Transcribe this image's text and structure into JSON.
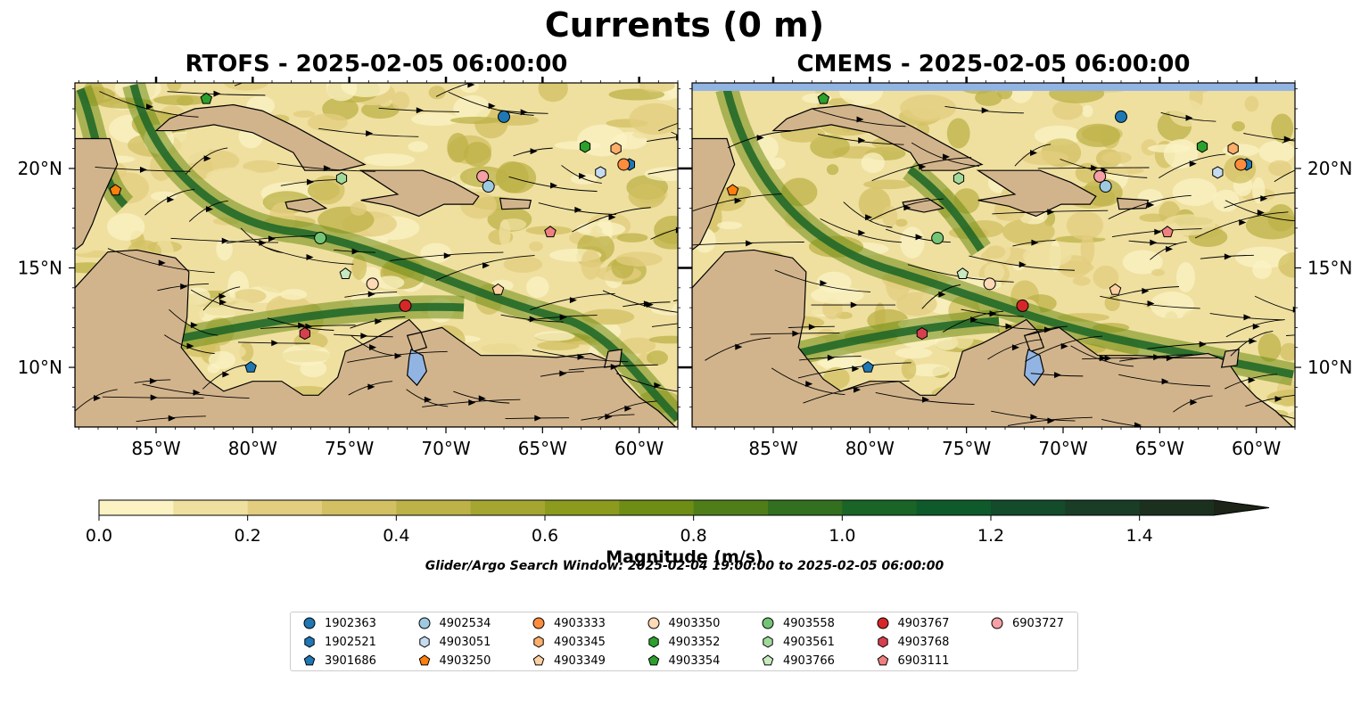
{
  "figure": {
    "title": "Currents (0 m)",
    "panels": [
      {
        "title": "RTOFS - 2025-02-05 06:00:00"
      },
      {
        "title": "CMEMS - 2025-02-05 06:00:00"
      }
    ],
    "colorbar": {
      "label": "Magnitude (m/s)",
      "ticks": [
        "0.0",
        "0.2",
        "0.4",
        "0.6",
        "0.8",
        "1.0",
        "1.2",
        "1.4"
      ],
      "colors": [
        "#fbf3c4",
        "#efe0a0",
        "#e3cd7f",
        "#d2c062",
        "#bcb247",
        "#a5a631",
        "#8c9b1d",
        "#6e8d14",
        "#4f7e19",
        "#32701f",
        "#1a6427",
        "#0f5a2a",
        "#134b2b",
        "#1a3d27",
        "#1c3020",
        "#1b2417"
      ],
      "extend": "max"
    },
    "search_window": "Glider/Argo Search Window: 2025-02-04 19:00:00 to 2025-02-05 06:00:00",
    "legend_title": ""
  },
  "chart_data": {
    "type": "map",
    "variable": "surface current magnitude (m/s) with streamlines",
    "lon_range": [
      -89.2,
      -58.0
    ],
    "lat_range": [
      7.0,
      24.3
    ],
    "xticks": [
      "85°W",
      "80°W",
      "75°W",
      "70°W",
      "65°W",
      "60°W"
    ],
    "xtick_values": [
      -85,
      -80,
      -75,
      -70,
      -65,
      -60
    ],
    "yticks": [
      "10°N",
      "15°N",
      "20°N"
    ],
    "ytick_values": [
      10,
      15,
      20
    ],
    "clim": [
      0.0,
      1.5
    ],
    "colors": {
      "land": "#d2b48c",
      "water": "#92b4e3",
      "coast": "#000000"
    },
    "floats": [
      {
        "id": "1902363",
        "marker": "circle",
        "color": "#1f77b4",
        "lon": -67.0,
        "lat": 22.6
      },
      {
        "id": "1902521",
        "marker": "hexagon",
        "color": "#1f77b4",
        "lon": -60.5,
        "lat": 20.2
      },
      {
        "id": "3901686",
        "marker": "pentagon",
        "color": "#1f77b4",
        "lon": -80.1,
        "lat": 10.0
      },
      {
        "id": "4902534",
        "marker": "circle",
        "color": "#9ecae1",
        "lon": -67.8,
        "lat": 19.1
      },
      {
        "id": "4903051",
        "marker": "hexagon",
        "color": "#c6dbef",
        "lon": -62.0,
        "lat": 19.8
      },
      {
        "id": "4903250",
        "marker": "pentagon",
        "color": "#ff7f0e",
        "lon": -87.1,
        "lat": 18.9
      },
      {
        "id": "4903333",
        "marker": "circle",
        "color": "#fd8d3c",
        "lon": -60.8,
        "lat": 20.2
      },
      {
        "id": "4903345",
        "marker": "hexagon",
        "color": "#fdae6b",
        "lon": -61.2,
        "lat": 21.0
      },
      {
        "id": "4903349",
        "marker": "pentagon",
        "color": "#fdd0a2",
        "lon": -67.3,
        "lat": 13.9
      },
      {
        "id": "4903350",
        "marker": "circle",
        "color": "#fdd9b5",
        "lon": -73.8,
        "lat": 14.2
      },
      {
        "id": "4903352",
        "marker": "hexagon",
        "color": "#2ca02c",
        "lon": -62.8,
        "lat": 21.1
      },
      {
        "id": "4903354",
        "marker": "pentagon",
        "color": "#2ca02c",
        "lon": -82.4,
        "lat": 23.5
      },
      {
        "id": "4903558",
        "marker": "circle",
        "color": "#74c476",
        "lon": -76.5,
        "lat": 16.5
      },
      {
        "id": "4903561",
        "marker": "hexagon",
        "color": "#a1d99b",
        "lon": -75.4,
        "lat": 19.5
      },
      {
        "id": "4903766",
        "marker": "pentagon",
        "color": "#c7e9c0",
        "lon": -75.2,
        "lat": 14.7
      },
      {
        "id": "4903767",
        "marker": "circle",
        "color": "#d62728",
        "lon": -72.1,
        "lat": 13.1
      },
      {
        "id": "4903768",
        "marker": "hexagon",
        "color": "#d6404e",
        "lon": -77.3,
        "lat": 11.7
      },
      {
        "id": "6903111",
        "marker": "pentagon",
        "color": "#f08080",
        "lon": -64.6,
        "lat": 16.8
      },
      {
        "id": "6903727",
        "marker": "circle",
        "color": "#f4a0a6",
        "lon": -68.1,
        "lat": 19.6
      }
    ]
  }
}
